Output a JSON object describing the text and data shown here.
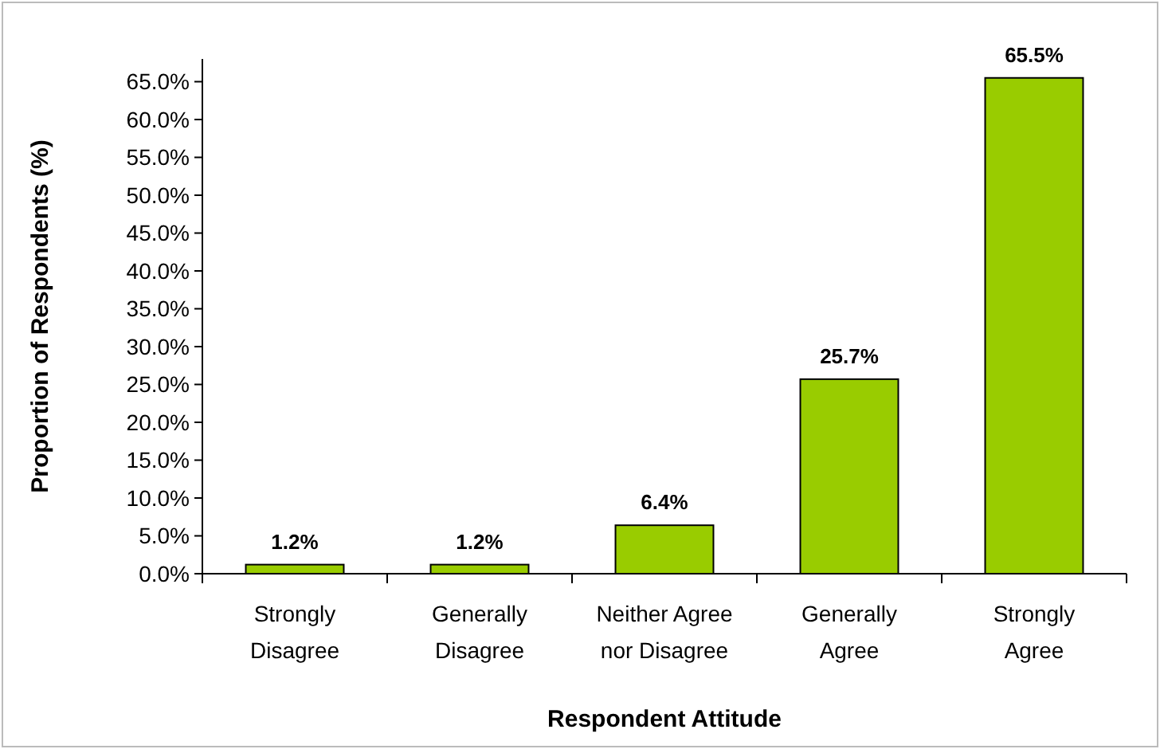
{
  "chart_data": {
    "type": "bar",
    "xlabel": "Respondent Attitude",
    "ylabel": "Proportion of Respondents (%)",
    "categories": [
      "Strongly Disagree",
      "Generally Disagree",
      "Neither Agree nor Disagree",
      "Generally Agree",
      "Strongly Agree"
    ],
    "values": [
      1.2,
      1.2,
      6.4,
      25.7,
      65.5
    ],
    "value_labels": [
      "1.2%",
      "1.2%",
      "6.4%",
      "25.7%",
      "65.5%"
    ],
    "color": "#99cc00",
    "ylim": [
      0,
      68
    ],
    "yticks": [
      {
        "value": 0,
        "label": "0.0%"
      },
      {
        "value": 5,
        "label": "5.0%"
      },
      {
        "value": 10,
        "label": "10.0%"
      },
      {
        "value": 15,
        "label": "15.0%"
      },
      {
        "value": 20,
        "label": "20.0%"
      },
      {
        "value": 25,
        "label": "25.0%"
      },
      {
        "value": 30,
        "label": "30.0%"
      },
      {
        "value": 35,
        "label": "35.0%"
      },
      {
        "value": 40,
        "label": "40.0%"
      },
      {
        "value": 45,
        "label": "45.0%"
      },
      {
        "value": 50,
        "label": "50.0%"
      },
      {
        "value": 55,
        "label": "55.0%"
      },
      {
        "value": 60,
        "label": "60.0%"
      },
      {
        "value": 65,
        "label": "65.0%"
      }
    ],
    "grid": false
  }
}
